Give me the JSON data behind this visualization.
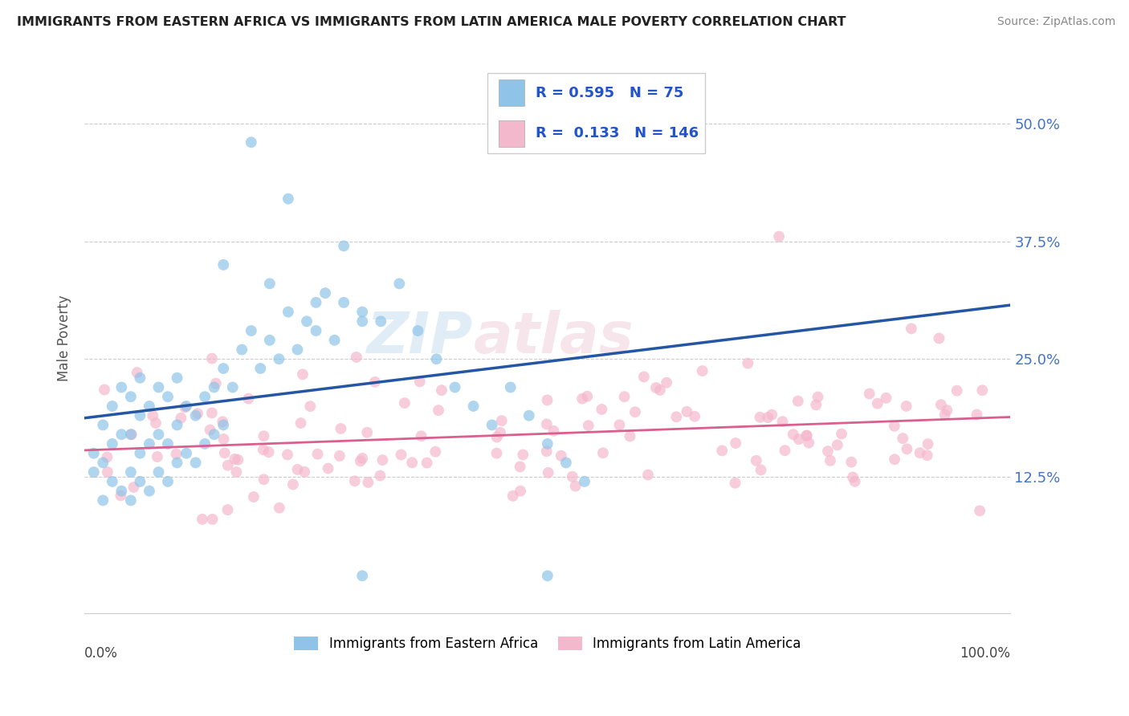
{
  "title": "IMMIGRANTS FROM EASTERN AFRICA VS IMMIGRANTS FROM LATIN AMERICA MALE POVERTY CORRELATION CHART",
  "source": "Source: ZipAtlas.com",
  "ylabel": "Male Poverty",
  "yticks": [
    "12.5%",
    "25.0%",
    "37.5%",
    "50.0%"
  ],
  "ytick_vals": [
    0.125,
    0.25,
    0.375,
    0.5
  ],
  "xlim": [
    0.0,
    1.0
  ],
  "ylim": [
    -0.02,
    0.565
  ],
  "legend_label1": "Immigrants from Eastern Africa",
  "legend_label2": "Immigrants from Latin America",
  "R1": 0.595,
  "N1": 75,
  "R2": 0.133,
  "N2": 146,
  "color1": "#8fc4e8",
  "color2": "#f4b8cc",
  "line_color1": "#2456a4",
  "line_color2": "#d95f8e",
  "watermark_zip": "ZIP",
  "watermark_atlas": "atlas",
  "background_color": "#ffffff"
}
